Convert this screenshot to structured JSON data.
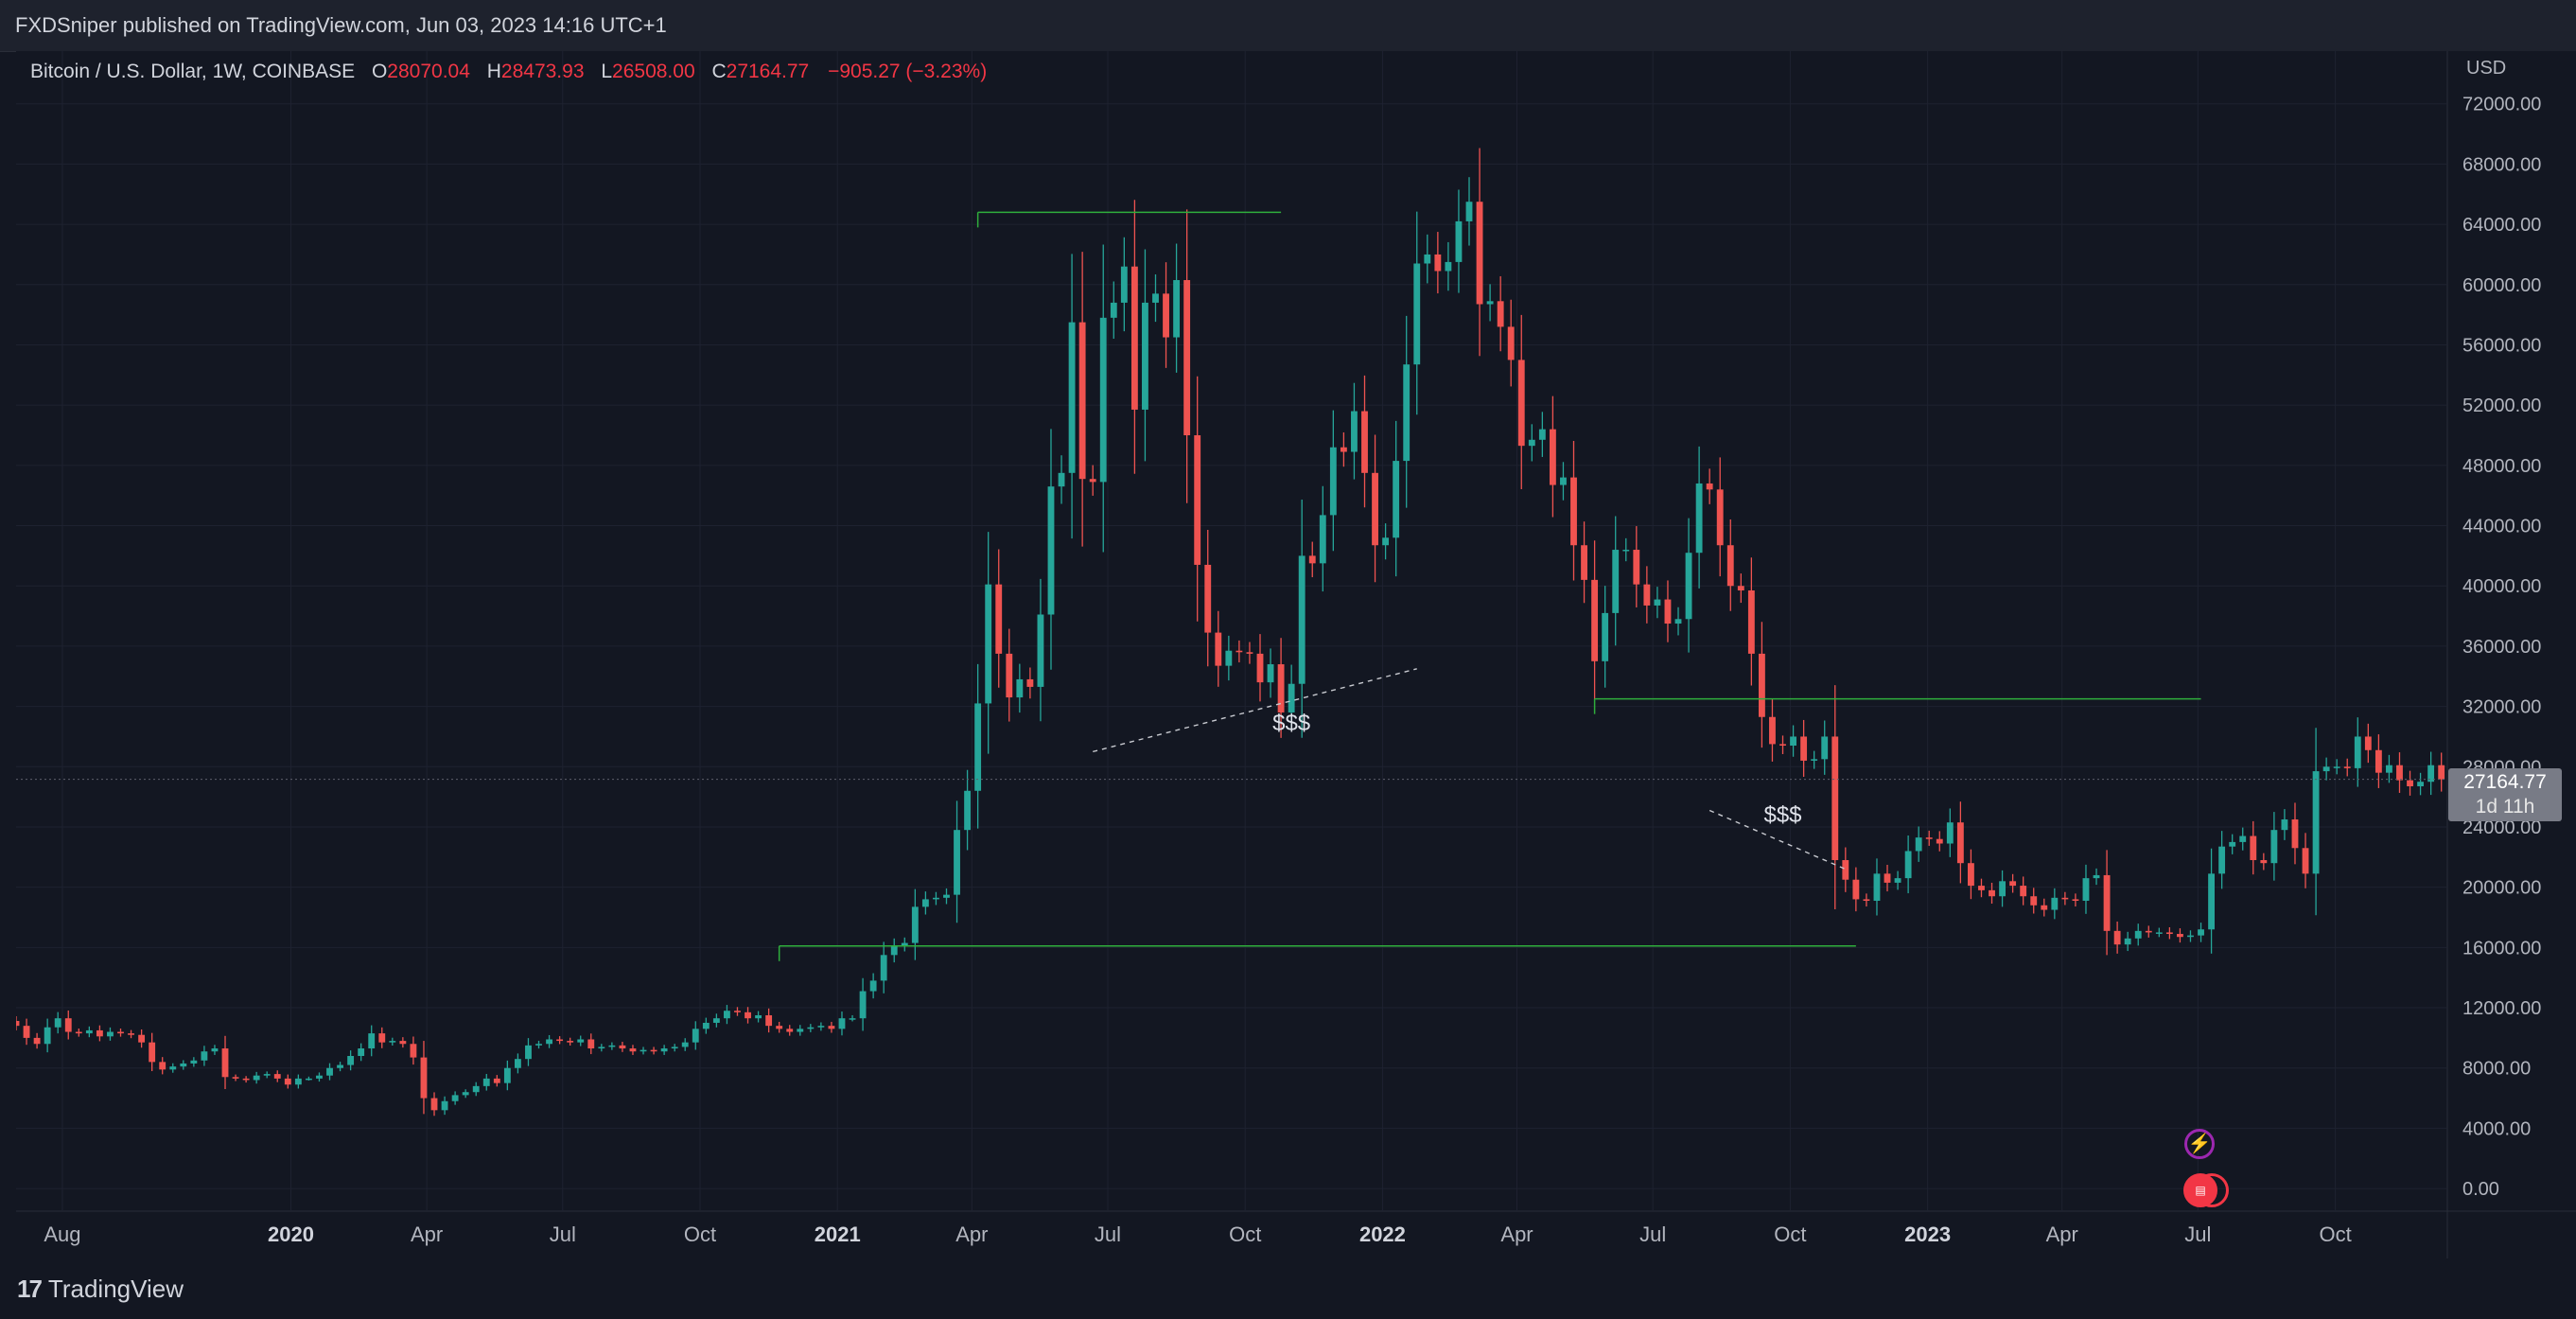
{
  "header": {
    "published": "FXDSniper published on TradingView.com, Jun 03, 2023 14:16 UTC+1"
  },
  "legend": {
    "symbol": "Bitcoin / U.S. Dollar, 1W, COINBASE",
    "o_label": "O",
    "o_value": "28070.04",
    "h_label": "H",
    "h_value": "28473.93",
    "l_label": "L",
    "l_value": "26508.00",
    "c_label": "C",
    "c_value": "27164.77",
    "change": "−905.27 (−3.23%)"
  },
  "price_tag": {
    "price": "27164.77",
    "countdown": "1d 11h"
  },
  "footer": {
    "brand": "TradingView",
    "brand_mark": "17"
  },
  "icons": [
    "lightning-event-icon",
    "us-flag-event-icon"
  ],
  "colors": {
    "up": "#26a69a",
    "down": "#ef5350",
    "background": "#131722",
    "level": "#2fae3c",
    "text": "#d1d4dc"
  },
  "chart_data": {
    "type": "candlestick",
    "currency": "USD",
    "y_axis_ticks": [
      "72000.00",
      "68000.00",
      "64000.00",
      "60000.00",
      "56000.00",
      "52000.00",
      "48000.00",
      "44000.00",
      "40000.00",
      "36000.00",
      "32000.00",
      "28000.00",
      "24000.00",
      "20000.00",
      "16000.00",
      "12000.00",
      "8000.00",
      "4000.00",
      "0.00"
    ],
    "ylim": [
      -1500,
      75500
    ],
    "x_axis_ticks": [
      {
        "date": "2019-08-01",
        "label": "Aug",
        "major": false
      },
      {
        "date": "2020-01-01",
        "label": "2020",
        "major": true
      },
      {
        "date": "2020-04-01",
        "label": "Apr",
        "major": false
      },
      {
        "date": "2020-07-01",
        "label": "Jul",
        "major": false
      },
      {
        "date": "2020-10-01",
        "label": "Oct",
        "major": false
      },
      {
        "date": "2021-01-01",
        "label": "2021",
        "major": true
      },
      {
        "date": "2021-04-01",
        "label": "Apr",
        "major": false
      },
      {
        "date": "2021-07-01",
        "label": "Jul",
        "major": false
      },
      {
        "date": "2021-10-01",
        "label": "Oct",
        "major": false
      },
      {
        "date": "2022-01-01",
        "label": "2022",
        "major": true
      },
      {
        "date": "2022-04-01",
        "label": "Apr",
        "major": false
      },
      {
        "date": "2022-07-01",
        "label": "Jul",
        "major": false
      },
      {
        "date": "2022-10-01",
        "label": "Oct",
        "major": false
      },
      {
        "date": "2023-01-01",
        "label": "2023",
        "major": true
      },
      {
        "date": "2023-04-01",
        "label": "Apr",
        "major": false
      },
      {
        "date": "2023-07-01",
        "label": "Jul",
        "major": false
      },
      {
        "date": "2023-10-01",
        "label": "Oct",
        "major": false
      }
    ],
    "xlim": [
      "2019-07-01",
      "2023-12-15"
    ],
    "series_name": "Bitcoin / U.S. Dollar, 1W, COINBASE",
    "weekly_closes": {
      "start": "2019-07-01",
      "values": [
        10800,
        10000,
        9600,
        10700,
        11300,
        10400,
        10300,
        10500,
        10100,
        10400,
        10300,
        10200,
        9700,
        8400,
        7900,
        8100,
        8300,
        8500,
        9100,
        9300,
        7400,
        7300,
        7200,
        7500,
        7600,
        7300,
        6900,
        7300,
        7300,
        7500,
        8000,
        8200,
        8800,
        9300,
        10300,
        9700,
        9800,
        9600,
        8700,
        6000,
        5200,
        5800,
        6200,
        6400,
        6800,
        7300,
        7000,
        8000,
        8600,
        9500,
        9600,
        9900,
        9800,
        9700,
        9900,
        9300,
        9400,
        9500,
        9300,
        9100,
        9200,
        9100,
        9300,
        9400,
        9700,
        10600,
        11000,
        11300,
        11800,
        11700,
        11300,
        11500,
        10800,
        10600,
        10400,
        10600,
        10700,
        10800,
        10600,
        11300,
        11300,
        13100,
        13800,
        15500,
        16100,
        16300,
        18700,
        19200,
        19300,
        19500,
        23800,
        26400,
        32200,
        40100,
        35500,
        32600,
        33800,
        33300,
        38100,
        46600,
        47500,
        57500,
        47100,
        46900,
        57800,
        58800,
        61200,
        51700,
        58800,
        59400,
        56500,
        60300,
        50000,
        41400,
        36900,
        34700,
        35700,
        35600,
        35500,
        33600,
        34800,
        31600,
        33500,
        42000,
        41500,
        44700,
        49200,
        48900,
        51600,
        47500,
        42700,
        43200,
        48300,
        54700,
        61400,
        62000,
        60900,
        61500,
        64200,
        65500,
        58700,
        58900,
        57200,
        55000,
        49300,
        49700,
        50400,
        46700,
        47200,
        42700,
        40400,
        35000,
        38200,
        42400,
        42400,
        40100,
        38700,
        39100,
        37500,
        37800,
        42200,
        46800,
        46400,
        42700,
        40000,
        39700,
        35500,
        31300,
        29500,
        29400,
        30000,
        28400,
        28500,
        30000,
        21800,
        20500,
        19200,
        19100,
        20900,
        20300,
        20600,
        22400,
        23300,
        23200,
        22900,
        24300,
        21600,
        20100,
        19800,
        19400,
        20400,
        20100,
        19400,
        18800,
        18500,
        19300,
        19200,
        19100,
        20600,
        20800,
        17100,
        16200,
        16600,
        17100,
        17000,
        17000,
        16900,
        16700,
        16800,
        17200,
        20900,
        22700,
        23000,
        23400,
        21800,
        21600,
        23800,
        24500,
        22600,
        20900,
        27700,
        28000,
        28000,
        27900,
        30000,
        29100,
        27600,
        28100,
        27100,
        26700,
        27000,
        28100,
        27164.77
      ]
    },
    "annotations": [
      {
        "type": "horizontal_level",
        "from": "2021-04-05",
        "to": "2021-10-25",
        "value": 64800
      },
      {
        "type": "horizontal_level",
        "from": "2022-05-23",
        "to": "2023-07-03",
        "value": 32500
      },
      {
        "type": "horizontal_level",
        "from": "2020-11-23",
        "to": "2022-11-14",
        "value": 16100
      },
      {
        "type": "dashed_trendline",
        "from": [
          "2021-06-21",
          29000
        ],
        "to": [
          "2022-01-24",
          34500
        ]
      },
      {
        "type": "dashed_trendline",
        "from": [
          "2022-08-08",
          25100
        ],
        "to": [
          "2022-11-07",
          21200
        ]
      },
      {
        "type": "text",
        "text": "$$$",
        "at": [
          "2021-11-01",
          30400
        ]
      },
      {
        "type": "text",
        "text": "$$$",
        "at": [
          "2022-09-26",
          24300
        ]
      }
    ],
    "last_price": 27164.77
  }
}
